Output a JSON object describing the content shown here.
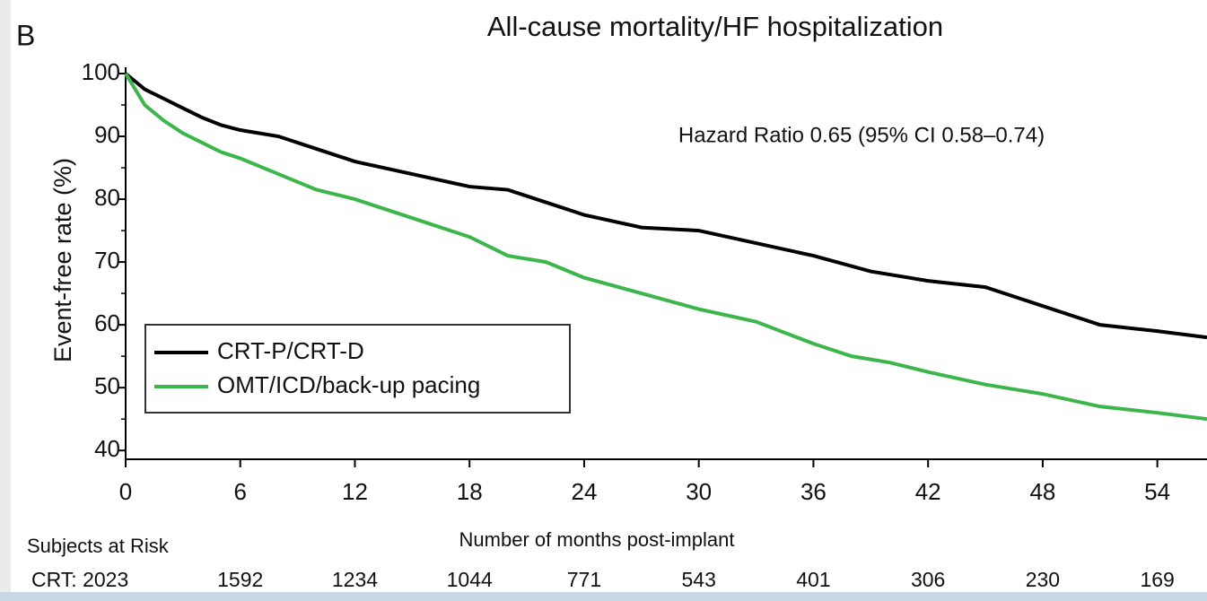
{
  "chart_data": {
    "type": "line",
    "panel_label": "B",
    "title": "All-cause mortality/HF hospitalization",
    "annotation": "Hazard Ratio 0.65 (95% CI 0.58–0.74)",
    "x_label": "Number of months post-implant",
    "y_label": "Event-free rate (%)",
    "xlim": [
      0,
      56.6
    ],
    "xticks": [
      0,
      6,
      12,
      18,
      24,
      30,
      36,
      42,
      48,
      54
    ],
    "ylim": [
      38.6,
      101
    ],
    "yticks": [
      40,
      50,
      60,
      70,
      80,
      90,
      100
    ],
    "yminorticks": [
      45,
      55,
      65,
      75,
      85,
      95
    ],
    "legend": "lower left",
    "series": [
      {
        "name": "CRT-P/CRT-D",
        "color": "#000000",
        "x": [
          0,
          1,
          2,
          3,
          4,
          5,
          6,
          8,
          10,
          12,
          15,
          18,
          20,
          22,
          24,
          27,
          30,
          33,
          36,
          39,
          42,
          45,
          47,
          49,
          51,
          54,
          56.6
        ],
        "values": [
          100,
          97.5,
          96,
          94.5,
          93,
          91.8,
          91,
          90,
          88,
          86,
          84,
          82,
          81.5,
          79.5,
          77.5,
          75.5,
          75,
          73,
          71,
          68.5,
          67,
          66,
          64,
          62,
          60,
          59,
          58
        ]
      },
      {
        "name": "OMT/ICD/back-up pacing",
        "color": "#3cb54a",
        "x": [
          0,
          1,
          2,
          3,
          4,
          5,
          6,
          8,
          10,
          12,
          15,
          18,
          20,
          22,
          24,
          27,
          30,
          33,
          36,
          38,
          40,
          42,
          45,
          48,
          51,
          54,
          56.6
        ],
        "values": [
          100,
          95,
          92.5,
          90.5,
          89,
          87.5,
          86.5,
          84,
          81.5,
          80,
          77,
          74,
          71,
          70,
          67.5,
          65,
          62.5,
          60.5,
          57,
          55,
          54,
          52.5,
          50.5,
          49,
          47,
          46,
          45
        ]
      }
    ]
  },
  "at_risk": {
    "title": "Subjects at Risk",
    "rows": [
      {
        "label": "CRT: 2023",
        "values": [
          "1592",
          "1234",
          "1044",
          "771",
          "543",
          "401",
          "306",
          "230",
          "169"
        ]
      }
    ]
  }
}
